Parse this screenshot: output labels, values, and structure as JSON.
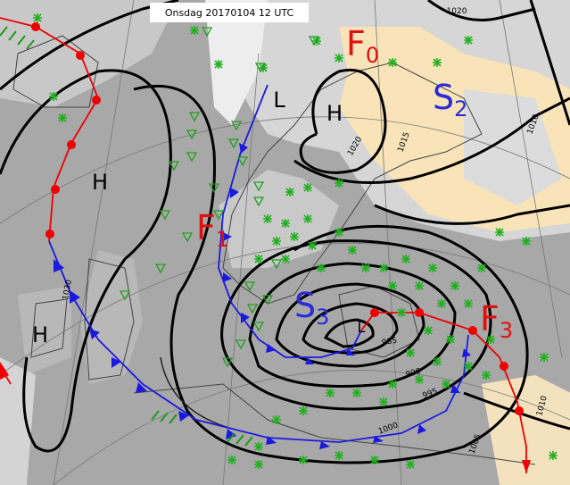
{
  "header": {
    "title": "Onsdag 20170104 12 UTC"
  },
  "pressure_centers": [
    "H",
    "H",
    "L",
    "H",
    "L"
  ],
  "fronts": [
    {
      "letter": "F",
      "index": "0"
    },
    {
      "letter": "F",
      "index": "1"
    },
    {
      "letter": "F",
      "index": "3"
    }
  ],
  "systems": [
    {
      "letter": "S",
      "index": "2"
    },
    {
      "letter": "S",
      "index": "3"
    }
  ],
  "isobar_labels": [
    "1020",
    "1015",
    "1010",
    "1010",
    "1005",
    "1000",
    "995",
    "990",
    "985",
    "1020",
    "1030"
  ]
}
